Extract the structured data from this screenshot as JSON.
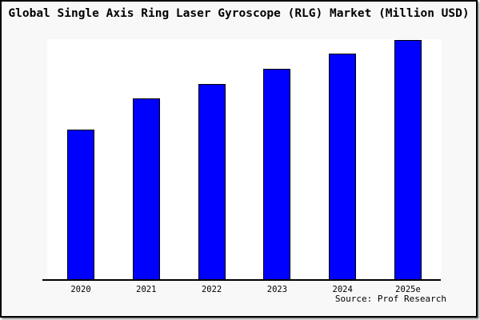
{
  "chart_data": {
    "type": "bar",
    "title": "Global Single Axis Ring Laser Gyroscope (RLG) Market (Million USD)",
    "categories": [
      "2020",
      "2021",
      "2022",
      "2023",
      "2024",
      "2025e"
    ],
    "values": [
      62.8,
      75.6,
      81.8,
      88.0,
      94.4,
      100.0
    ],
    "values_unit": "percent of tallest bar (2025e); chart displays no numeric y-axis scale",
    "xlabel": "",
    "ylabel": "",
    "legend": false,
    "grid": false,
    "y_axis_ticks": [],
    "source": "Source: Prof Research",
    "colors": {
      "bar_fill": "#0000ff",
      "bar_border": "#000000",
      "background": "#f8f8f8",
      "plot_background": "#ffffff",
      "text": "#000000",
      "frame_border": "#000000"
    }
  }
}
